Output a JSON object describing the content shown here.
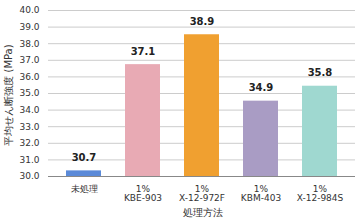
{
  "chart_data": {
    "type": "bar",
    "y_label": "平均せん断強度 (MPa)",
    "x_label": "処理方法",
    "categories": [
      "未処理",
      "1%\nKBE-903",
      "1%\nX-12-972F",
      "1%\nKBM-403",
      "1%\nX-12-984S"
    ],
    "values": [
      30.7,
      37.1,
      38.9,
      34.9,
      35.8
    ],
    "colors": [
      "#5b8ad8",
      "#e8aab4",
      "#f0a030",
      "#a99cc4",
      "#9fd8d0"
    ],
    "ylim": [
      30,
      40
    ],
    "yticks": [
      {
        "value": 30,
        "label": "30.0"
      },
      {
        "value": 31,
        "label": "31.0"
      },
      {
        "value": 32,
        "label": "32.0"
      },
      {
        "value": 33,
        "label": "33.0"
      },
      {
        "value": 34,
        "label": "34.0"
      },
      {
        "value": 35,
        "label": "35.0"
      },
      {
        "value": 36,
        "label": "36.0"
      },
      {
        "value": 37,
        "label": "37.0"
      },
      {
        "value": 38,
        "label": "38.0"
      },
      {
        "value": 39,
        "label": "39.0"
      },
      {
        "value": 40,
        "label": "40.0"
      }
    ],
    "grid": true,
    "data_labels": true
  }
}
